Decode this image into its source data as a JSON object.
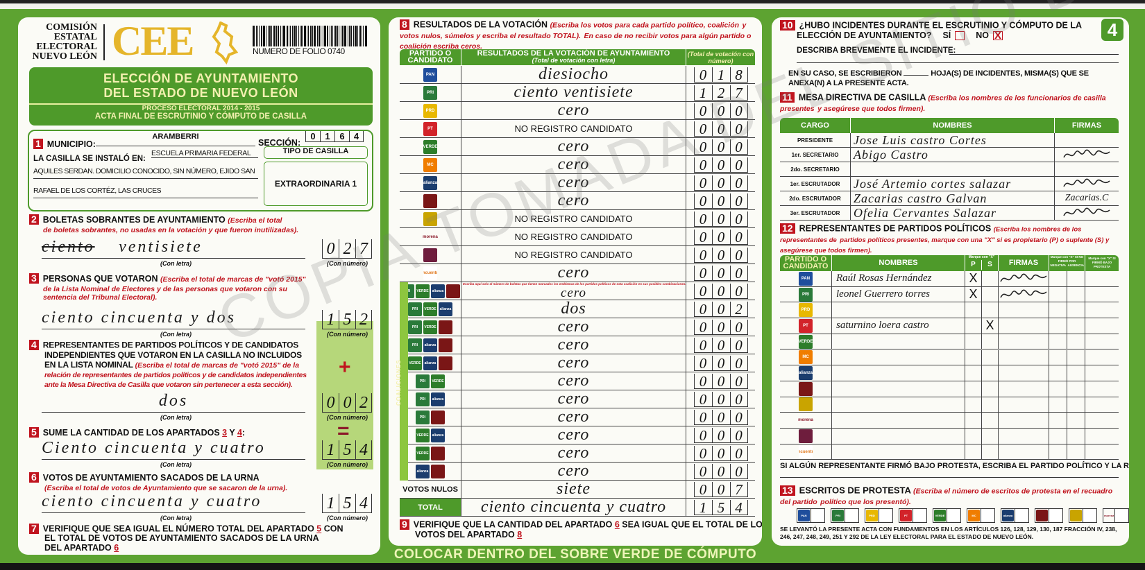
{
  "colors": {
    "green": "#5da331",
    "dark_green": "#4e9a2a",
    "red": "#c0141e",
    "gold": "#e5b52a"
  },
  "header": {
    "org_lines": [
      "COMISIÓN",
      "ESTATAL",
      "ELECTORAL",
      "NUEVO LEÓN"
    ],
    "logo_text": "CEE",
    "folio": "NUMERO DE FOLIO 0740",
    "barcode_icon": "barcode-icon",
    "sheet_number": "4"
  },
  "banner": {
    "title1": "ELECCIÓN DE AYUNTAMIENTO",
    "title2": "DEL ESTADO DE NUEVO LEÓN",
    "process": "PROCESO ELECTORAL  2014 - 2015",
    "subtitle": "ACTA FINAL DE ESCRUTINIO Y CÓMPUTO DE CASILLA"
  },
  "s1": {
    "num": "1",
    "municipio_label": "MUNICIPIO:",
    "municipio": "ARAMBERRI",
    "seccion_label": "SECCIÓN:",
    "seccion": [
      "0",
      "1",
      "6",
      "4"
    ],
    "instalo_label": "LA CASILLA SE INSTALÓ EN:",
    "address1": "ESCUELA PRIMARIA FEDERAL",
    "address2": "AQUILES SERDAN. DOMICILIO CONOCIDO, SIN NÚMERO, EJIDO SAN",
    "address3": "RAFAEL DE LOS CORTÉZ, LAS CRUCES",
    "tipo_label": "TIPO DE CASILLA",
    "tipo": "EXTRAORDINARIA 1"
  },
  "labels": {
    "con_letra": "(Con letra)",
    "con_numero": "(Con número)",
    "plus": "+",
    "equals": "="
  },
  "s2": {
    "num": "2",
    "title": "BOLETAS SOBRANTES DE AYUNTAMIENTO ",
    "hint1": "(Escriba el total",
    "hint2": "de boletas sobrantes, no usadas en la votación y que fueron inutilizadas).",
    "struck": "ciento",
    "letra": "ventisiete",
    "numero": "027"
  },
  "s3": {
    "num": "3",
    "title": "PERSONAS QUE VOTARON ",
    "hint1": "(Escriba el total de marcas de \"votó 2015\"",
    "hint2": "de la Lista Nominal de Electores y de las personas que votaron con su",
    "hint3": "sentencia del Tribunal Electoral).",
    "letra": "ciento cincuenta y dos",
    "numero": "152"
  },
  "s4": {
    "num": "4",
    "title1": "REPRESENTANTES DE PARTIDOS POLÍTICOS Y DE CANDIDATOS",
    "title2": "INDEPENDIENTES QUE VOTARON EN LA CASILLA NO INCLUIDOS",
    "title3": "EN LA LISTA NOMINAL ",
    "hint1": "(Escriba el total de marcas de \"votó 2015\" de la",
    "hint2": "relación de representantes de partidos políticos y de candidatos independientes",
    "hint3": "ante la Mesa Directiva de Casilla que votaron sin pertenecer a esta sección).",
    "letra": "dos",
    "numero": "002"
  },
  "s5": {
    "num": "5",
    "title": "SUME LA CANTIDAD DE LOS APARTADOS ",
    "a": "3",
    "y": " Y ",
    "b": "4",
    "colon": ":",
    "letra": "Ciento cincuenta y cuatro",
    "numero": "154"
  },
  "s6": {
    "num": "6",
    "title": "VOTOS DE AYUNTAMIENTO SACADOS DE LA URNA",
    "hint": "(Escriba el total de votos de Ayuntamiento que se sacaron de la urna).",
    "letra": "ciento cincuenta y cuatro",
    "numero": "154"
  },
  "s7": {
    "num": "7",
    "line1a": "VERIFIQUE QUE SEA IGUAL EL NÚMERO TOTAL DEL APARTADO ",
    "ref1": "5",
    "line1b": " CON",
    "line2": "EL TOTAL DE VOTOS DE AYUNTAMIENTO SACADOS DE LA URNA",
    "line3": "DEL APARTADO ",
    "ref2": "6"
  },
  "s8": {
    "num": "8",
    "title": "RESULTADOS DE LA VOTACIÓN ",
    "hint1": "(Escriba los votos para cada partido político, coalición",
    "hint2": "y votos nulos, súmelos y escriba el resultado TOTAL).",
    "hint3": "En caso de no recibir votos para algún partido o coalición escriba ceros.",
    "col1": "PARTIDO O CANDIDATO",
    "col2": "RESULTADOS DE LA VOTACIÓN DE AYUNTAMIENTO",
    "col2sub": "(Total de votación con letra)",
    "col3": "(Total de votación con número)",
    "coalition_label": "COALICIONES",
    "coalition_note": "Escriba aquí solo el número de boletas que tienen marcados los emblemas de los partidos políticos de esta coalición en sus posibles combinaciones.",
    "nulos_label": "VOTOS NULOS",
    "nulos_letra": "siete",
    "nulos_numero": "007",
    "total_label": "TOTAL",
    "total_letra": "ciento cincuenta y cuatro",
    "total_numero": "154"
  },
  "parties": {
    "pan": {
      "label": "PAN",
      "color": "#1f4e9c",
      "icon": "pan-logo-icon"
    },
    "pri": {
      "label": "PRI",
      "color": "#2a7a3a",
      "icon": "pri-logo-icon"
    },
    "prd": {
      "label": "PRD",
      "color": "#e8b800",
      "icon": "prd-logo-icon"
    },
    "pt": {
      "label": "PT",
      "color": "#d2232a",
      "icon": "pt-logo-icon"
    },
    "verde": {
      "label": "VERDE",
      "color": "#2d7d2a",
      "icon": "verde-logo-icon"
    },
    "mc": {
      "label": "MC",
      "color": "#f07d00",
      "icon": "movimiento-ciudadano-logo-icon"
    },
    "na": {
      "label": "alianza",
      "color": "#1b3d6e",
      "icon": "nueva-alianza-logo-icon"
    },
    "p8": {
      "label": "",
      "color": "#7a1616",
      "icon": "cruzada-ciudadana-logo-icon"
    },
    "p9": {
      "label": "",
      "color": "#c9a400",
      "icon": "partido-demócrata-logo-icon"
    },
    "morena": {
      "label": "morena",
      "color": "#8b1a2a",
      "icon": "morena-logo-icon"
    },
    "ph": {
      "label": "",
      "color": "#6e1d3d",
      "icon": "humanista-logo-icon"
    },
    "es": {
      "label": "encuentro",
      "color": "#e07a20",
      "icon": "encuentro-social-logo-icon"
    }
  },
  "results": [
    {
      "party": [
        "pan"
      ],
      "letra": "diesiocho",
      "numero": "018"
    },
    {
      "party": [
        "pri"
      ],
      "letra": "ciento ventisiete",
      "numero": "127"
    },
    {
      "party": [
        "prd"
      ],
      "letra": "cero",
      "numero": "000"
    },
    {
      "party": [
        "pt"
      ],
      "letra": "NO REGISTRO CANDIDATO",
      "numero": "000",
      "printed": true
    },
    {
      "party": [
        "verde"
      ],
      "letra": "cero",
      "numero": "000"
    },
    {
      "party": [
        "mc"
      ],
      "letra": "cero",
      "numero": "000"
    },
    {
      "party": [
        "na"
      ],
      "letra": "cero",
      "numero": "000"
    },
    {
      "party": [
        "p8"
      ],
      "letra": "cero",
      "numero": "000"
    },
    {
      "party": [
        "p9"
      ],
      "letra": "NO REGISTRO CANDIDATO",
      "numero": "000",
      "printed": true
    },
    {
      "party": [
        "morena"
      ],
      "letra": "NO REGISTRO CANDIDATO",
      "numero": "000",
      "printed": true
    },
    {
      "party": [
        "ph"
      ],
      "letra": "NO REGISTRO CANDIDATO",
      "numero": "000",
      "printed": true
    },
    {
      "party": [
        "es"
      ],
      "letra": "cero",
      "numero": "000"
    },
    {
      "party": [
        "pri",
        "verde",
        "na",
        "p8"
      ],
      "letra": "cero",
      "numero": "000",
      "coalition": true
    },
    {
      "party": [
        "pri",
        "verde",
        "na"
      ],
      "letra": "dos",
      "numero": "002",
      "coalition": true
    },
    {
      "party": [
        "pri",
        "verde",
        "p8"
      ],
      "letra": "cero",
      "numero": "000",
      "coalition": true
    },
    {
      "party": [
        "pri",
        "na",
        "p8"
      ],
      "letra": "cero",
      "numero": "000",
      "coalition": true
    },
    {
      "party": [
        "verde",
        "na",
        "p8"
      ],
      "letra": "cero",
      "numero": "000",
      "coalition": true
    },
    {
      "party": [
        "pri",
        "verde"
      ],
      "letra": "cero",
      "numero": "000",
      "coalition": true
    },
    {
      "party": [
        "pri",
        "na"
      ],
      "letra": "cero",
      "numero": "000",
      "coalition": true
    },
    {
      "party": [
        "pri",
        "p8"
      ],
      "letra": "cero",
      "numero": "000",
      "coalition": true
    },
    {
      "party": [
        "verde",
        "na"
      ],
      "letra": "cero",
      "numero": "000",
      "coalition": true
    },
    {
      "party": [
        "verde",
        "p8"
      ],
      "letra": "cero",
      "numero": "000",
      "coalition": true
    },
    {
      "party": [
        "na",
        "p8"
      ],
      "letra": "cero",
      "numero": "000",
      "coalition": true
    }
  ],
  "s9": {
    "num": "9",
    "line1a": "VERIFIQUE QUE LA CANTIDAD DEL APARTADO ",
    "ref1": "6",
    "line1b": " SEA IGUAL QUE EL TOTAL DE LOS",
    "line2": "VOTOS DEL APARTADO ",
    "ref2": "8"
  },
  "footer_band": "COLOCAR DENTRO DEL SOBRE VERDE DE CÓMPUTO",
  "s10": {
    "num": "10",
    "q1": "¿HUBO INCIDENTES DURANTE EL ESCRUTINIO Y CÓMPUTO DE LA",
    "q2": "ELECCIÓN DE AYUNTAMIENTO?",
    "si": "SÍ",
    "no": "NO",
    "si_checked": false,
    "no_checked": true,
    "mark": "X",
    "describe": "DESCRIBA BREVEMENTE EL INCIDENTE:",
    "sheets1": "EN SU CASO, SE ESCRIBIERON",
    "sheets2": "HOJA(S) DE INCIDENTES, MISMA(S) QUE SE",
    "sheets3": "ANEXA(N) A LA PRESENTE ACTA."
  },
  "s11": {
    "num": "11",
    "title": "MESA DIRECTIVA DE CASILLA ",
    "hint1": "(Escriba los nombres de los funcionarios de casilla presentes",
    "hint2": "y asegúrese que todos firmen).",
    "cols": [
      "CARGO",
      "NOMBRES",
      "FIRMAS"
    ],
    "rows": [
      {
        "cargo": "PRESIDENTE",
        "nombre": "Jose Luis castro Cortes",
        "firma": "",
        "signed": false
      },
      {
        "cargo": "1er. SECRETARIO",
        "nombre": "Abigo Castro",
        "firma": "",
        "signed": true
      },
      {
        "cargo": "2do. SECRETARIO",
        "nombre": "",
        "firma": "",
        "signed": false
      },
      {
        "cargo": "1er. ESCRUTADOR",
        "nombre": "José Artemio cortes salazar",
        "firma": "",
        "signed": true
      },
      {
        "cargo": "2do. ESCRUTADOR",
        "nombre": "Zacarias castro Galvan",
        "firma": "Zacarias.C",
        "signed": false
      },
      {
        "cargo": "3er. ESCRUTADOR",
        "nombre": "Ofelia Cervantes Salazar",
        "firma": "",
        "signed": true
      }
    ]
  },
  "s12": {
    "num": "12",
    "title": "REPRESENTANTES DE PARTIDOS POLÍTICOS ",
    "hint1": "(Escriba los nombres de los representantes de",
    "hint2": "partidos políticos presentes, marque con una \"X\" si es propietario (P) o suplente (S) y asegúrese que todos firmen).",
    "cols": {
      "partido": "PARTIDO O CANDIDATO",
      "nombres": "NOMBRES",
      "marque": "Marque con \"X\"",
      "p": "P",
      "s": "S",
      "firmas": "FIRMAS",
      "no_firmo": "Marque con \"X\" SI NO FIRMÓ POR",
      "negativa": "NEGATIVA",
      "ausencia": "AUSENCIA",
      "bajo": "Marque con \"X\" SI FIRMÓ BAJO PROTESTA"
    },
    "rows": [
      {
        "party": "pan",
        "nombre": "Raúl Rosas Hernández",
        "p": "X",
        "s": "",
        "signed": true
      },
      {
        "party": "pri",
        "nombre": "leonel Guerrero torres",
        "p": "X",
        "s": "",
        "signed": true
      },
      {
        "party": "prd",
        "nombre": "",
        "p": "",
        "s": "",
        "signed": false
      },
      {
        "party": "pt",
        "nombre": "saturnino loera castro",
        "p": "",
        "s": "X",
        "signed": false
      },
      {
        "party": "verde",
        "nombre": "",
        "p": "",
        "s": "",
        "signed": false
      },
      {
        "party": "mc",
        "nombre": "",
        "p": "",
        "s": "",
        "signed": false
      },
      {
        "party": "na",
        "nombre": "",
        "p": "",
        "s": "",
        "signed": false
      },
      {
        "party": "p8",
        "nombre": "",
        "p": "",
        "s": "",
        "signed": false
      },
      {
        "party": "p9",
        "nombre": "",
        "p": "",
        "s": "",
        "signed": false
      },
      {
        "party": "morena",
        "nombre": "",
        "p": "",
        "s": "",
        "signed": false
      },
      {
        "party": "ph",
        "nombre": "",
        "p": "",
        "s": "",
        "signed": false
      },
      {
        "party": "es",
        "nombre": "",
        "p": "",
        "s": "",
        "signed": false
      }
    ],
    "protest_note": "SI ALGÚN REPRESENTANTE FIRMÓ BAJO PROTESTA, ESCRIBA EL PARTIDO POLÍTICO Y LA RAZÓN:"
  },
  "s13": {
    "num": "13",
    "title": "ESCRITOS DE PROTESTA ",
    "hint1": "(Escriba el número de escritos de protesta en el recuadro del partido",
    "hint2": "político que los presentó).",
    "parties": [
      "pan",
      "pri",
      "prd",
      "pt",
      "verde",
      "mc",
      "na",
      "p8",
      "p9",
      "morena",
      "ph",
      "es"
    ],
    "legal1": "SE LEVANTÓ LA PRESENTE ACTA CON FUNDAMENTOS EN LOS ARTÍCULOS 126, 128, 129, 130, 187 FRACCIÓN IV, 238,",
    "legal2": "246, 247, 248, 249, 251 Y 292 DE LA LEY ELECTORAL PARA EL ESTADO DE NUEVO LEÓN."
  },
  "watermark": "COPIA TOMADA DEL SITIO DEL"
}
